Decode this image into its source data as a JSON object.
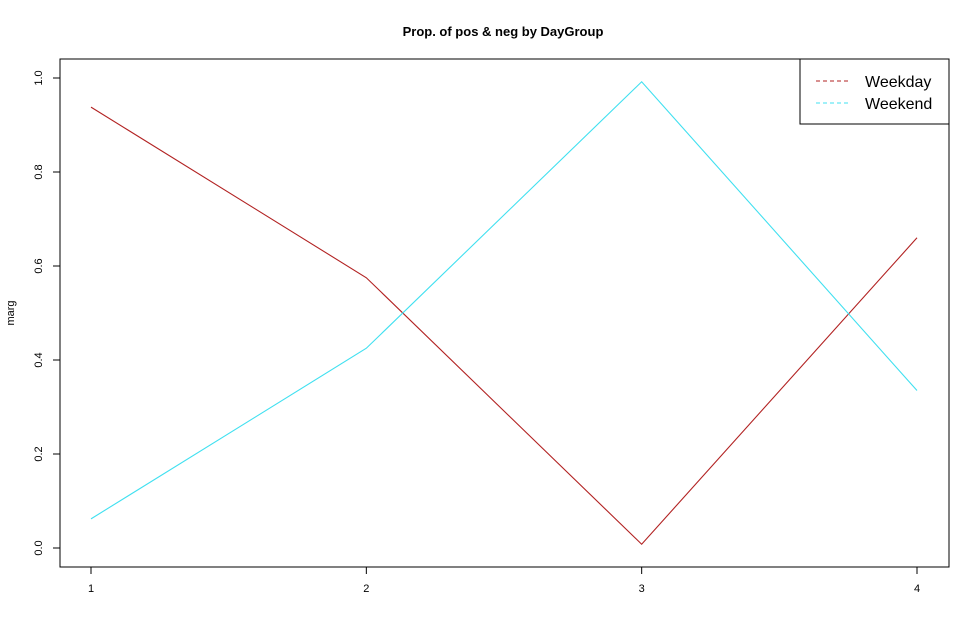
{
  "chart_data": {
    "type": "line",
    "title": "Prop. of pos & neg by DayGroup",
    "xlabel": "",
    "ylabel": "marg",
    "x": [
      1,
      2,
      3,
      4
    ],
    "xlim": [
      1,
      4
    ],
    "ylim": [
      0,
      1
    ],
    "x_ticks": [
      "1",
      "2",
      "3",
      "4"
    ],
    "y_ticks": [
      "0.0",
      "0.2",
      "0.4",
      "0.6",
      "0.8",
      "1.0"
    ],
    "grid": false,
    "legend_position": "top-right",
    "series": [
      {
        "name": "Weekday",
        "values": [
          0.938,
          0.575,
          0.008,
          0.66
        ],
        "color": "#b22222"
      },
      {
        "name": "Weekend",
        "values": [
          0.062,
          0.425,
          0.992,
          0.335
        ],
        "color": "#40e0f0"
      }
    ]
  }
}
